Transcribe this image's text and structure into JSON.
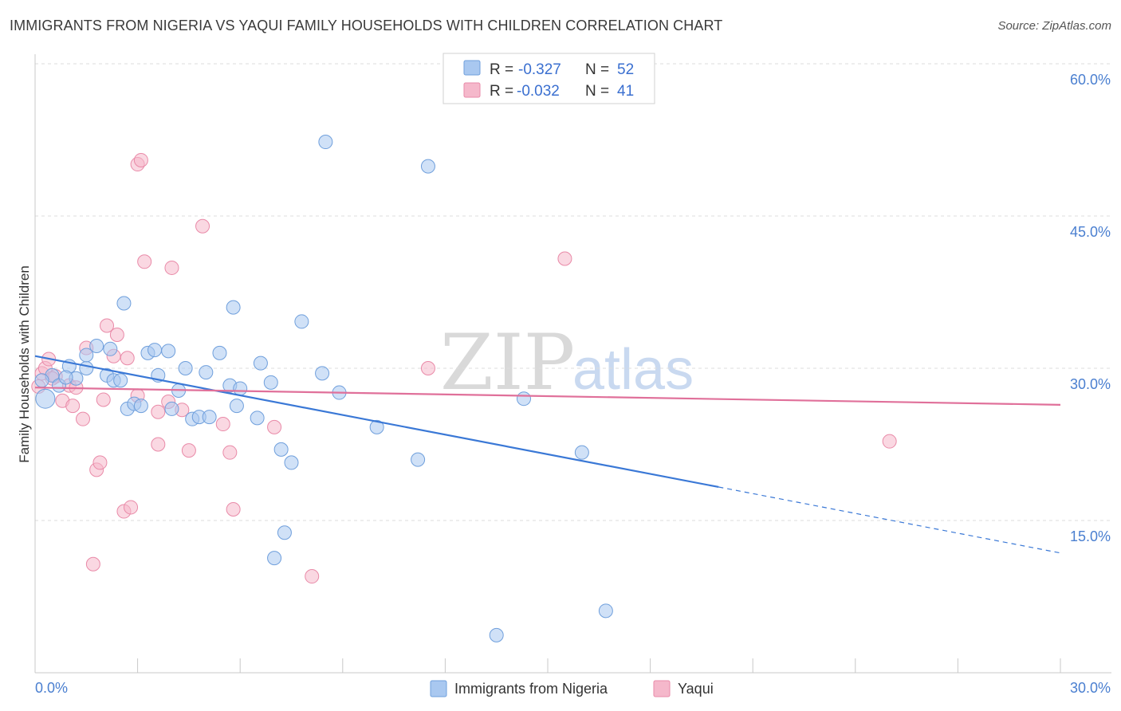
{
  "header": {
    "title": "IMMIGRANTS FROM NIGERIA VS YAQUI FAMILY HOUSEHOLDS WITH CHILDREN CORRELATION CHART",
    "source": "Source: ZipAtlas.com"
  },
  "watermark": {
    "zip": "ZIP",
    "atlas": "atlas"
  },
  "colors": {
    "blue_fill": "#a9c8f0",
    "blue_stroke": "#6f9fdc",
    "blue_line": "#3a78d6",
    "pink_fill": "#f5b8cb",
    "pink_stroke": "#e98aa8",
    "pink_line": "#e0709a",
    "axis_text": "#4a7fd0",
    "grid": "#dddddd"
  },
  "legend": {
    "rows": [
      {
        "r_label": "R =",
        "r_value": "-0.327",
        "n_label": "N =",
        "n_value": "52"
      },
      {
        "r_label": "R =",
        "r_value": "-0.032",
        "n_label": "N =",
        "n_value": "41"
      }
    ]
  },
  "bottom_legend": [
    "Immigrants from Nigeria",
    "Yaqui"
  ],
  "chart_data": {
    "type": "scatter",
    "title": "IMMIGRANTS FROM NIGERIA VS YAQUI FAMILY HOUSEHOLDS WITH CHILDREN CORRELATION CHART",
    "xlabel": "",
    "ylabel": "Family Households with Children",
    "xlim": [
      0,
      30
    ],
    "ylim": [
      0,
      62
    ],
    "x_tick_labels": [
      "0.0%",
      "30.0%"
    ],
    "y_ticks": [
      15,
      30,
      45,
      60
    ],
    "y_tick_labels": [
      "15.0%",
      "30.0%",
      "45.0%",
      "60.0%"
    ],
    "series": [
      {
        "name": "Immigrants from Nigeria",
        "color": "#a9c8f0",
        "r": -0.327,
        "n": 52,
        "trend": {
          "x_start": 0,
          "y_start": 31.2,
          "x_solid_end": 20,
          "y_solid_end": 18.3,
          "x_end": 30,
          "y_end": 11.8
        },
        "points": [
          [
            0.3,
            27.0
          ],
          [
            0.5,
            29.3
          ],
          [
            0.7,
            28.3
          ],
          [
            1.0,
            30.2
          ],
          [
            1.2,
            29.0
          ],
          [
            1.5,
            30.0
          ],
          [
            1.5,
            31.3
          ],
          [
            1.8,
            32.2
          ],
          [
            2.1,
            29.3
          ],
          [
            2.3,
            28.8
          ],
          [
            2.5,
            28.8
          ],
          [
            2.6,
            36.4
          ],
          [
            2.7,
            26.0
          ],
          [
            2.9,
            26.5
          ],
          [
            3.1,
            26.3
          ],
          [
            3.3,
            31.5
          ],
          [
            3.5,
            31.8
          ],
          [
            3.6,
            29.3
          ],
          [
            3.9,
            31.7
          ],
          [
            4.0,
            26.0
          ],
          [
            4.2,
            27.8
          ],
          [
            4.4,
            30.0
          ],
          [
            4.6,
            25.0
          ],
          [
            4.8,
            25.2
          ],
          [
            5.0,
            29.6
          ],
          [
            5.1,
            25.2
          ],
          [
            5.4,
            31.5
          ],
          [
            5.7,
            28.3
          ],
          [
            5.8,
            36.0
          ],
          [
            5.9,
            26.3
          ],
          [
            6.0,
            28.0
          ],
          [
            6.5,
            25.1
          ],
          [
            6.6,
            30.5
          ],
          [
            6.9,
            28.6
          ],
          [
            7.0,
            11.3
          ],
          [
            7.2,
            22.0
          ],
          [
            7.3,
            13.8
          ],
          [
            7.5,
            20.7
          ],
          [
            7.8,
            34.6
          ],
          [
            8.4,
            29.5
          ],
          [
            8.5,
            52.3
          ],
          [
            8.9,
            27.6
          ],
          [
            10.0,
            24.2
          ],
          [
            11.2,
            21.0
          ],
          [
            11.5,
            49.9
          ],
          [
            13.5,
            3.7
          ],
          [
            14.3,
            27.0
          ],
          [
            16.0,
            21.7
          ],
          [
            16.7,
            6.1
          ],
          [
            0.2,
            28.8
          ],
          [
            0.9,
            29.1
          ],
          [
            2.2,
            31.9
          ]
        ]
      },
      {
        "name": "Yaqui",
        "color": "#f5b8cb",
        "r": -0.032,
        "n": 41,
        "trend": {
          "x_start": 0,
          "y_start": 28.1,
          "x_end": 30,
          "y_end": 26.4
        },
        "points": [
          [
            0.2,
            29.5
          ],
          [
            0.3,
            30.0
          ],
          [
            0.4,
            30.9
          ],
          [
            0.6,
            29.2
          ],
          [
            0.8,
            26.8
          ],
          [
            1.0,
            28.3
          ],
          [
            1.1,
            26.3
          ],
          [
            1.2,
            28.1
          ],
          [
            1.4,
            25.0
          ],
          [
            1.5,
            32.0
          ],
          [
            1.7,
            10.7
          ],
          [
            1.8,
            20.0
          ],
          [
            1.9,
            20.7
          ],
          [
            2.0,
            26.9
          ],
          [
            2.1,
            34.2
          ],
          [
            2.3,
            31.2
          ],
          [
            2.4,
            33.3
          ],
          [
            2.6,
            15.9
          ],
          [
            2.7,
            31.0
          ],
          [
            2.8,
            16.3
          ],
          [
            3.0,
            50.1
          ],
          [
            3.0,
            27.3
          ],
          [
            3.1,
            50.5
          ],
          [
            3.2,
            40.5
          ],
          [
            3.6,
            25.7
          ],
          [
            3.6,
            22.5
          ],
          [
            3.9,
            26.7
          ],
          [
            4.0,
            39.9
          ],
          [
            4.3,
            25.9
          ],
          [
            4.5,
            21.9
          ],
          [
            4.9,
            44.0
          ],
          [
            5.5,
            24.5
          ],
          [
            5.7,
            21.7
          ],
          [
            5.8,
            16.1
          ],
          [
            7.0,
            24.2
          ],
          [
            8.1,
            9.5
          ],
          [
            11.5,
            30.0
          ],
          [
            15.5,
            40.8
          ],
          [
            25.0,
            22.8
          ],
          [
            0.1,
            28.2
          ],
          [
            0.5,
            29.0
          ]
        ]
      }
    ],
    "gridlines": true,
    "legend_position": "top-center"
  }
}
